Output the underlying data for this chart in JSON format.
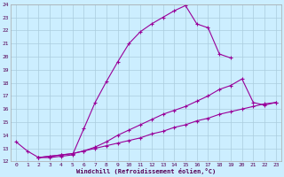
{
  "xlabel": "Windchill (Refroidissement éolien,°C)",
  "bg_color": "#cceeff",
  "grid_color": "#aaccdd",
  "line_color": "#990099",
  "xlim": [
    -0.5,
    23.5
  ],
  "ylim": [
    12,
    24
  ],
  "xticks": [
    0,
    1,
    2,
    3,
    4,
    5,
    6,
    7,
    8,
    9,
    10,
    11,
    12,
    13,
    14,
    15,
    16,
    17,
    18,
    19,
    20,
    21,
    22,
    23
  ],
  "yticks": [
    12,
    13,
    14,
    15,
    16,
    17,
    18,
    19,
    20,
    21,
    22,
    23,
    24
  ],
  "line1_x": [
    0,
    1,
    2,
    3,
    4,
    5,
    6,
    7,
    8,
    9,
    10,
    11,
    12,
    13,
    14,
    15,
    16,
    17,
    18,
    19
  ],
  "line1_y": [
    13.5,
    12.8,
    12.3,
    12.3,
    12.4,
    12.5,
    14.5,
    16.5,
    18.1,
    19.6,
    21.0,
    21.9,
    22.5,
    23.0,
    23.5,
    23.9,
    22.5,
    22.2,
    20.2,
    19.9
  ],
  "line2_x": [
    2,
    3,
    4,
    5,
    6,
    7,
    8,
    9,
    10,
    11,
    12,
    13,
    14,
    15,
    16,
    17,
    18,
    19,
    20,
    21,
    22,
    23
  ],
  "line2_y": [
    12.3,
    12.4,
    12.5,
    12.6,
    12.8,
    13.1,
    13.5,
    14.0,
    14.4,
    14.8,
    15.2,
    15.6,
    15.9,
    16.2,
    16.6,
    17.0,
    17.5,
    17.8,
    18.3,
    16.5,
    16.3,
    16.5
  ],
  "line3_x": [
    2,
    3,
    4,
    5,
    6,
    7,
    8,
    9,
    10,
    11,
    12,
    13,
    14,
    15,
    16,
    17,
    18,
    19,
    20,
    21,
    22,
    23
  ],
  "line3_y": [
    12.3,
    12.4,
    12.5,
    12.6,
    12.8,
    13.0,
    13.2,
    13.4,
    13.6,
    13.8,
    14.1,
    14.3,
    14.6,
    14.8,
    15.1,
    15.3,
    15.6,
    15.8,
    16.0,
    16.2,
    16.4,
    16.5
  ]
}
